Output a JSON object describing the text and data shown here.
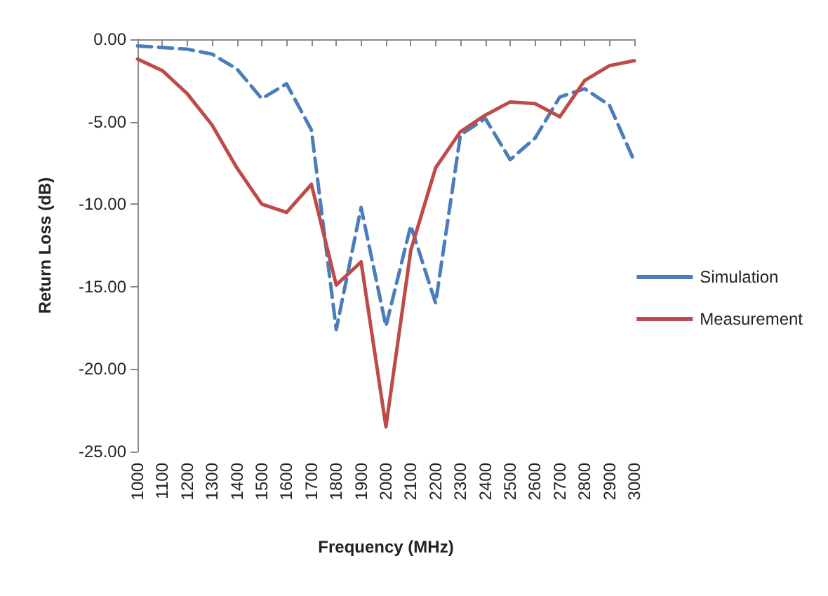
{
  "chart_data": {
    "type": "line",
    "xlabel": "Frequency (MHz)",
    "ylabel": "Return Loss (dB)",
    "categories": [
      "1000",
      "1100",
      "1200",
      "1300",
      "1400",
      "1500",
      "1600",
      "1700",
      "1800",
      "1900",
      "2000",
      "2100",
      "2200",
      "2300",
      "2400",
      "2500",
      "2600",
      "2700",
      "2800",
      "2900",
      "3000"
    ],
    "series": [
      {
        "name": "Simulation",
        "color": "#4a7ebb",
        "line_style": "dashed",
        "values": [
          -0.4,
          -0.5,
          -0.6,
          -0.9,
          -1.8,
          -3.6,
          -2.7,
          -5.5,
          -17.6,
          -10.2,
          -17.4,
          -11.3,
          -16.0,
          -5.8,
          -4.8,
          -7.3,
          -6.0,
          -3.5,
          -3.0,
          -4.0,
          -7.4
        ]
      },
      {
        "name": "Measurement",
        "color": "#be4b48",
        "line_style": "solid",
        "values": [
          -1.2,
          -1.9,
          -3.3,
          -5.2,
          -7.8,
          -10.0,
          -10.5,
          -8.8,
          -14.9,
          -13.5,
          -23.5,
          -12.8,
          -7.8,
          -5.6,
          -4.6,
          -3.8,
          -3.9,
          -4.7,
          -2.5,
          -1.6,
          -1.3
        ]
      }
    ],
    "ylim": [
      -25,
      0
    ],
    "yticks": [
      {
        "value": -25,
        "label": "-25.00"
      },
      {
        "value": -20,
        "label": "-20.00"
      },
      {
        "value": -15,
        "label": "-15.00"
      },
      {
        "value": -10,
        "label": "-10.00"
      },
      {
        "value": -5,
        "label": "-5.00"
      },
      {
        "value": 0,
        "label": "0.00"
      }
    ],
    "grid": false,
    "legend": "right",
    "marker": "none"
  }
}
